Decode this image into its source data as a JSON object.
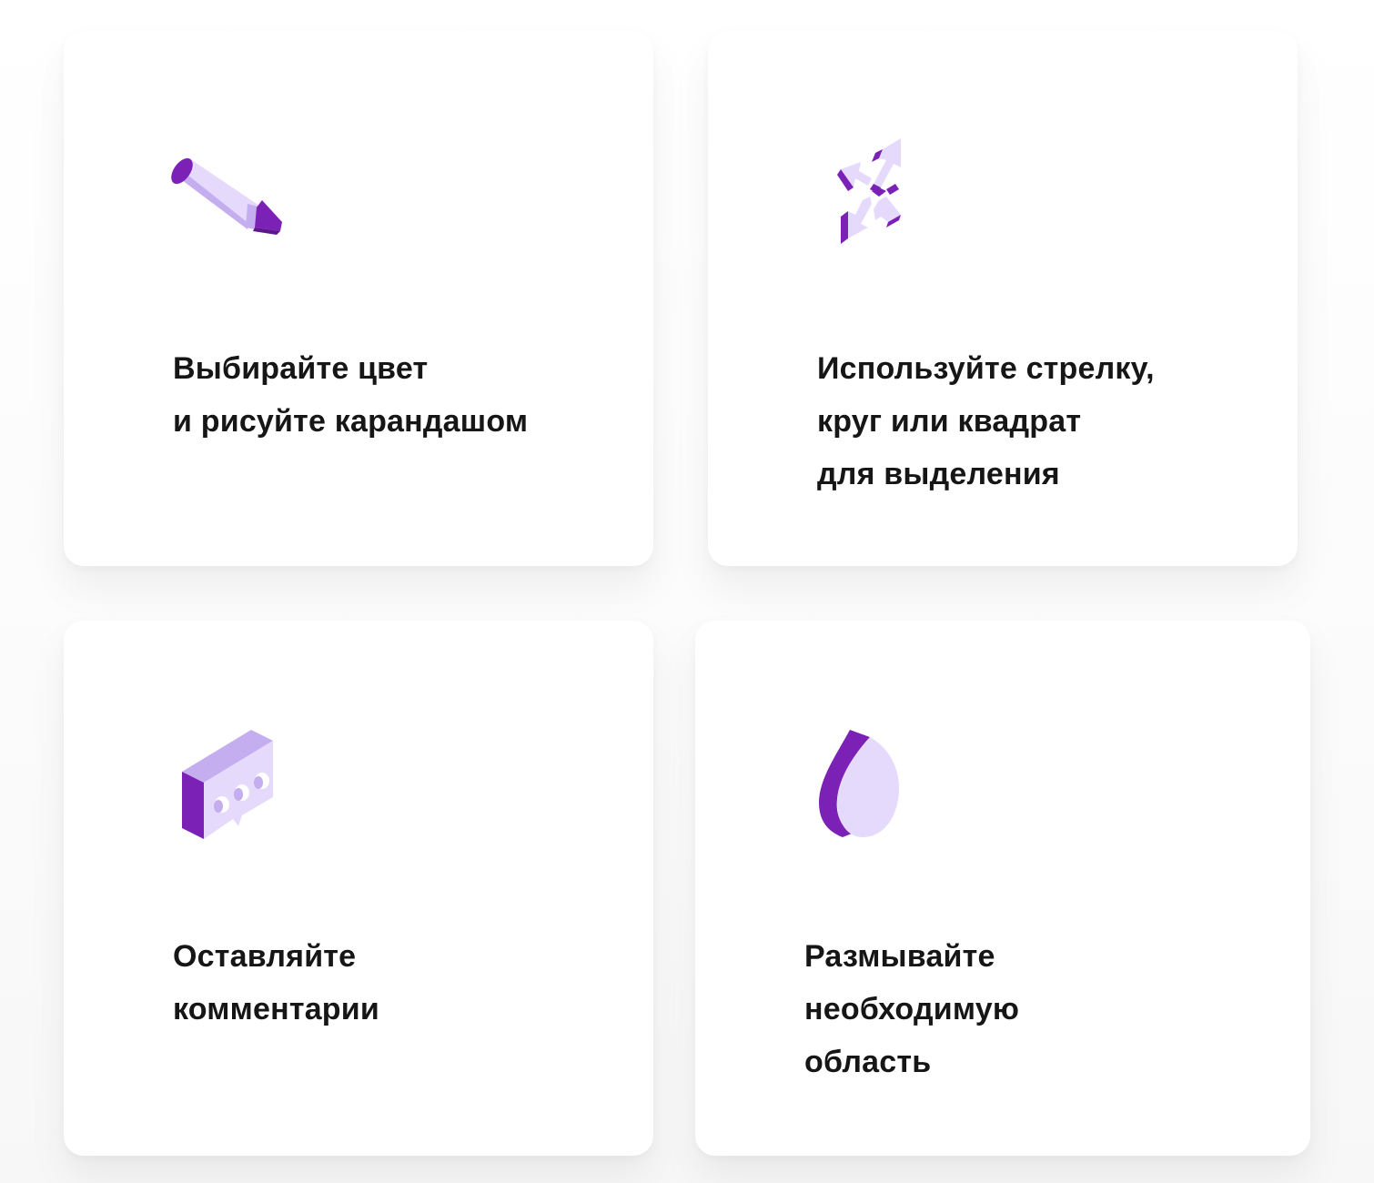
{
  "colors": {
    "accent_dark": "#7B21B5",
    "accent_light": "#E6DAFC",
    "accent_mid": "#C4AEF0",
    "text": "#161616",
    "card_bg": "#FFFFFF"
  },
  "cards": [
    {
      "icon": "pencil-icon",
      "lines": [
        "Выбирайте цвет",
        "и рисуйте карандашом"
      ]
    },
    {
      "icon": "arrows-icon",
      "lines": [
        "Используйте стрелку,",
        "круг или квадрат",
        "для выделения"
      ]
    },
    {
      "icon": "comment-bubble-icon",
      "lines": [
        "Оставляйте",
        "комментарии"
      ]
    },
    {
      "icon": "blur-drop-icon",
      "lines": [
        "Размывайте",
        "необходимую",
        "область"
      ]
    }
  ]
}
